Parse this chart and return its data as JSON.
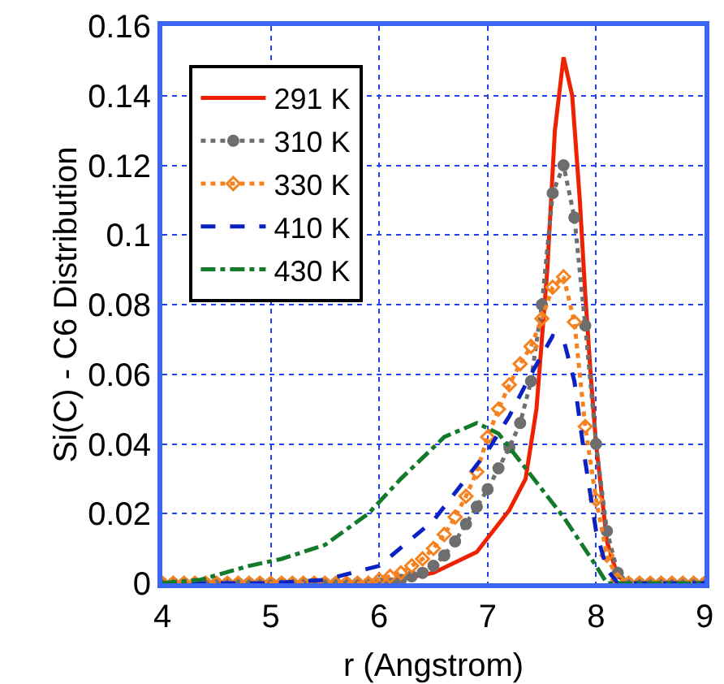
{
  "chart_data": {
    "type": "line",
    "xlabel": "r (Angstrom)",
    "ylabel": "Si(C) - C6 Distribution",
    "xlim": [
      4,
      9
    ],
    "xticks": [
      4,
      5,
      6,
      7,
      8,
      9
    ],
    "ylim": [
      0,
      0.16
    ],
    "yticks": [
      0,
      0.02,
      0.04,
      0.06,
      0.08,
      0.1,
      0.12,
      0.14,
      0.16
    ],
    "grid": true,
    "legend": "top left",
    "series": [
      {
        "name": "291 K",
        "color": "#ee2200",
        "line_style": "solid",
        "marker": "none",
        "x": [
          6,
          6.5,
          6.9,
          7.2,
          7.35,
          7.45,
          7.55,
          7.62,
          7.7,
          7.78,
          7.85,
          7.9,
          7.95,
          8.0,
          8.1,
          8.2,
          8.3,
          9
        ],
        "values": [
          0,
          0.003,
          0.009,
          0.021,
          0.03,
          0.05,
          0.09,
          0.13,
          0.151,
          0.14,
          0.11,
          0.083,
          0.06,
          0.04,
          0.012,
          0.002,
          0,
          0
        ]
      },
      {
        "name": "310 K",
        "color": "#6e6e6e",
        "line_style": "dotted",
        "marker": "circle",
        "x": [
          4,
          4.1,
          4.2,
          4.3,
          4.4,
          4.5,
          4.6,
          4.7,
          4.8,
          4.9,
          5,
          5.1,
          5.2,
          5.3,
          5.4,
          5.5,
          5.6,
          5.7,
          5.8,
          5.9,
          6,
          6.1,
          6.2,
          6.3,
          6.4,
          6.5,
          6.6,
          6.7,
          6.8,
          6.9,
          7,
          7.1,
          7.2,
          7.3,
          7.4,
          7.5,
          7.6,
          7.7,
          7.8,
          7.9,
          8,
          8.1,
          8.2,
          8.3,
          8.4,
          8.5,
          8.6,
          8.7,
          8.8,
          8.9,
          9
        ],
        "values": [
          0,
          0,
          0,
          0,
          0,
          0,
          0,
          0,
          0,
          0,
          0,
          0,
          0,
          0,
          0,
          0,
          0,
          0,
          0,
          0,
          0,
          0,
          0.001,
          0.002,
          0.003,
          0.005,
          0.008,
          0.012,
          0.017,
          0.022,
          0.027,
          0.033,
          0.039,
          0.046,
          0.058,
          0.08,
          0.112,
          0.12,
          0.105,
          0.074,
          0.04,
          0.015,
          0.003,
          0,
          0,
          0,
          0,
          0,
          0,
          0,
          0
        ]
      },
      {
        "name": "330 K",
        "color": "#f5821f",
        "line_style": "dotted",
        "marker": "diamond",
        "x": [
          4,
          4.1,
          4.2,
          4.3,
          4.4,
          4.5,
          4.6,
          4.7,
          4.8,
          4.9,
          5,
          5.1,
          5.2,
          5.3,
          5.4,
          5.5,
          5.6,
          5.7,
          5.8,
          5.9,
          6,
          6.1,
          6.2,
          6.3,
          6.4,
          6.5,
          6.6,
          6.7,
          6.8,
          6.9,
          7,
          7.1,
          7.2,
          7.3,
          7.4,
          7.5,
          7.6,
          7.7,
          7.8,
          7.9,
          8,
          8.1,
          8.2,
          8.3,
          8.4,
          8.5,
          8.6,
          8.7,
          8.8,
          8.9,
          9
        ],
        "values": [
          0,
          0,
          0,
          0,
          0,
          0,
          0,
          0,
          0,
          0,
          0,
          0,
          0,
          0,
          0,
          0,
          0,
          0,
          0,
          0,
          0.001,
          0.002,
          0.003,
          0.005,
          0.007,
          0.01,
          0.014,
          0.019,
          0.025,
          0.032,
          0.042,
          0.05,
          0.057,
          0.063,
          0.068,
          0.076,
          0.085,
          0.088,
          0.075,
          0.045,
          0.024,
          0.008,
          0.001,
          0,
          0,
          0,
          0,
          0,
          0,
          0,
          0
        ]
      },
      {
        "name": "410 K",
        "color": "#0a22c4",
        "line_style": "dashed",
        "marker": "none",
        "x": [
          4,
          5,
          5.5,
          6,
          6.5,
          7,
          7.2,
          7.4,
          7.6,
          7.7,
          7.8,
          7.9,
          8,
          8.1,
          8.2,
          9
        ],
        "values": [
          0,
          0,
          0.001,
          0.005,
          0.018,
          0.038,
          0.048,
          0.06,
          0.071,
          0.07,
          0.058,
          0.035,
          0.015,
          0.004,
          0,
          0
        ]
      },
      {
        "name": "430 K",
        "color": "#137a2a",
        "line_style": "dashdot",
        "marker": "none",
        "x": [
          4,
          4.35,
          4.8,
          5.1,
          5.5,
          5.9,
          6.2,
          6.6,
          6.9,
          7.1,
          7.3,
          7.5,
          7.7,
          8,
          8.1,
          9
        ],
        "values": [
          0,
          0.001,
          0.005,
          0.007,
          0.011,
          0.02,
          0.03,
          0.042,
          0.046,
          0.043,
          0.035,
          0.027,
          0.019,
          0.005,
          0,
          0
        ]
      }
    ]
  }
}
